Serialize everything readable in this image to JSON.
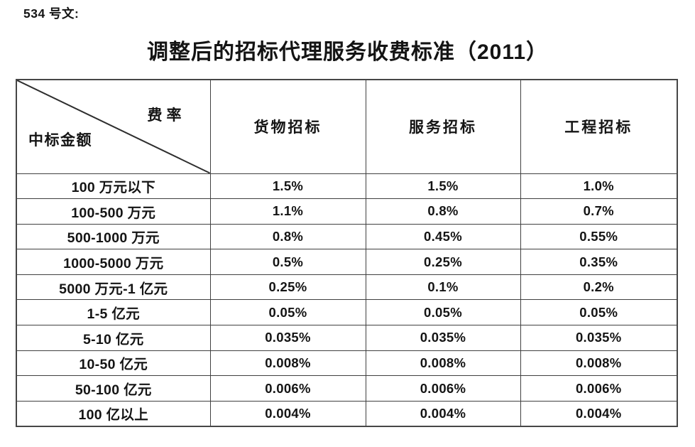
{
  "doc_label": "534 号文:",
  "title": "调整后的招标代理服务收费标准（2011）",
  "table": {
    "corner": {
      "top_right": "费率",
      "bottom_left": "中标金额"
    },
    "columns": [
      "货物招标",
      "服务招标",
      "工程招标"
    ],
    "rows": [
      {
        "label": "100 万元以下",
        "values": [
          "1.5%",
          "1.5%",
          "1.0%"
        ]
      },
      {
        "label": "100-500 万元",
        "values": [
          "1.1%",
          "0.8%",
          "0.7%"
        ]
      },
      {
        "label": "500-1000 万元",
        "values": [
          "0.8%",
          "0.45%",
          "0.55%"
        ]
      },
      {
        "label": "1000-5000 万元",
        "values": [
          "0.5%",
          "0.25%",
          "0.35%"
        ]
      },
      {
        "label": "5000 万元-1 亿元",
        "values": [
          "0.25%",
          "0.1%",
          "0.2%"
        ]
      },
      {
        "label": "1-5 亿元",
        "values": [
          "0.05%",
          "0.05%",
          "0.05%"
        ]
      },
      {
        "label": "5-10 亿元",
        "values": [
          "0.035%",
          "0.035%",
          "0.035%"
        ]
      },
      {
        "label": "10-50 亿元",
        "values": [
          "0.008%",
          "0.008%",
          "0.008%"
        ]
      },
      {
        "label": "50-100 亿元",
        "values": [
          "0.006%",
          "0.006%",
          "0.006%"
        ]
      },
      {
        "label": "100 亿以上",
        "values": [
          "0.004%",
          "0.004%",
          "0.004%"
        ]
      }
    ]
  },
  "colors": {
    "text": "#141414",
    "border": "#404040",
    "background": "#ffffff",
    "diagonal_line": "#2e2e2e"
  }
}
